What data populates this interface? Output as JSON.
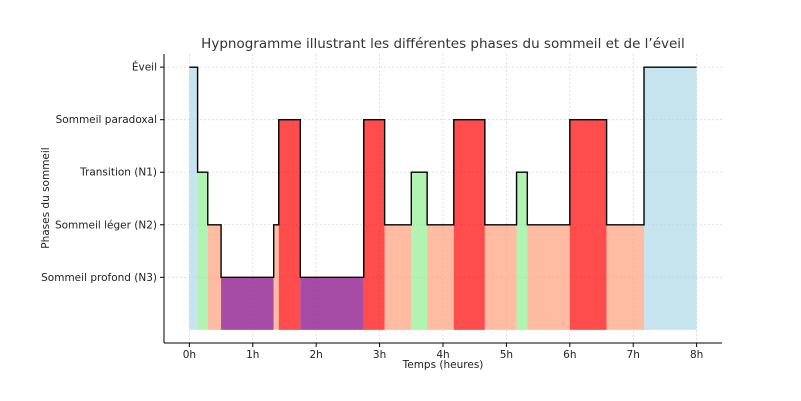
{
  "chart_data": {
    "type": "area",
    "title": "Hypnogramme illustrant les différentes phases du sommeil et de l’éveil",
    "xlabel": "Temps (heures)",
    "ylabel": "Phases du sommeil",
    "xlim": [
      -0.4,
      8.4
    ],
    "ylim": [
      -0.25,
      5.25
    ],
    "x_ticks": [
      {
        "value": 0,
        "label": "0h"
      },
      {
        "value": 1,
        "label": "1h"
      },
      {
        "value": 2,
        "label": "2h"
      },
      {
        "value": 3,
        "label": "3h"
      },
      {
        "value": 4,
        "label": "4h"
      },
      {
        "value": 5,
        "label": "5h"
      },
      {
        "value": 6,
        "label": "6h"
      },
      {
        "value": 7,
        "label": "7h"
      },
      {
        "value": 8,
        "label": "8h"
      }
    ],
    "y_categories": [
      {
        "value": 1,
        "label": "Sommeil profond (N3)"
      },
      {
        "value": 2,
        "label": "Sommeil léger (N2)"
      },
      {
        "value": 3,
        "label": "Transition (N1)"
      },
      {
        "value": 4,
        "label": "Sommeil paradoxal"
      },
      {
        "value": 5,
        "label": "Éveil"
      }
    ],
    "grid": true,
    "colors": {
      "Éveil": "#add8e6",
      "Sommeil paradoxal": "#ff0000",
      "Transition (N1)": "#90ee90",
      "Sommeil léger (N2)": "#ffa07a",
      "Sommeil profond (N3)": "#800080"
    },
    "segments": [
      {
        "start": 0.0,
        "end": 0.13,
        "stage": "Éveil",
        "level": 5
      },
      {
        "start": 0.13,
        "end": 0.29,
        "stage": "Transition (N1)",
        "level": 3
      },
      {
        "start": 0.29,
        "end": 0.5,
        "stage": "Sommeil léger (N2)",
        "level": 2
      },
      {
        "start": 0.5,
        "end": 1.33,
        "stage": "Sommeil profond (N3)",
        "level": 1
      },
      {
        "start": 1.33,
        "end": 1.41,
        "stage": "Sommeil léger (N2)",
        "level": 2
      },
      {
        "start": 1.41,
        "end": 1.75,
        "stage": "Sommeil paradoxal",
        "level": 4
      },
      {
        "start": 1.75,
        "end": 2.75,
        "stage": "Sommeil profond (N3)",
        "level": 1
      },
      {
        "start": 2.75,
        "end": 3.08,
        "stage": "Sommeil paradoxal",
        "level": 4
      },
      {
        "start": 3.08,
        "end": 3.5,
        "stage": "Sommeil léger (N2)",
        "level": 2
      },
      {
        "start": 3.5,
        "end": 3.75,
        "stage": "Transition (N1)",
        "level": 3
      },
      {
        "start": 3.75,
        "end": 4.17,
        "stage": "Sommeil léger (N2)",
        "level": 2
      },
      {
        "start": 4.17,
        "end": 4.66,
        "stage": "Sommeil paradoxal",
        "level": 4
      },
      {
        "start": 4.66,
        "end": 5.16,
        "stage": "Sommeil léger (N2)",
        "level": 2
      },
      {
        "start": 5.16,
        "end": 5.33,
        "stage": "Transition (N1)",
        "level": 3
      },
      {
        "start": 5.33,
        "end": 6.0,
        "stage": "Sommeil léger (N2)",
        "level": 2
      },
      {
        "start": 6.0,
        "end": 6.58,
        "stage": "Sommeil paradoxal",
        "level": 4
      },
      {
        "start": 6.58,
        "end": 7.17,
        "stage": "Sommeil léger (N2)",
        "level": 2
      },
      {
        "start": 7.17,
        "end": 8.0,
        "stage": "Éveil",
        "level": 5
      }
    ]
  }
}
